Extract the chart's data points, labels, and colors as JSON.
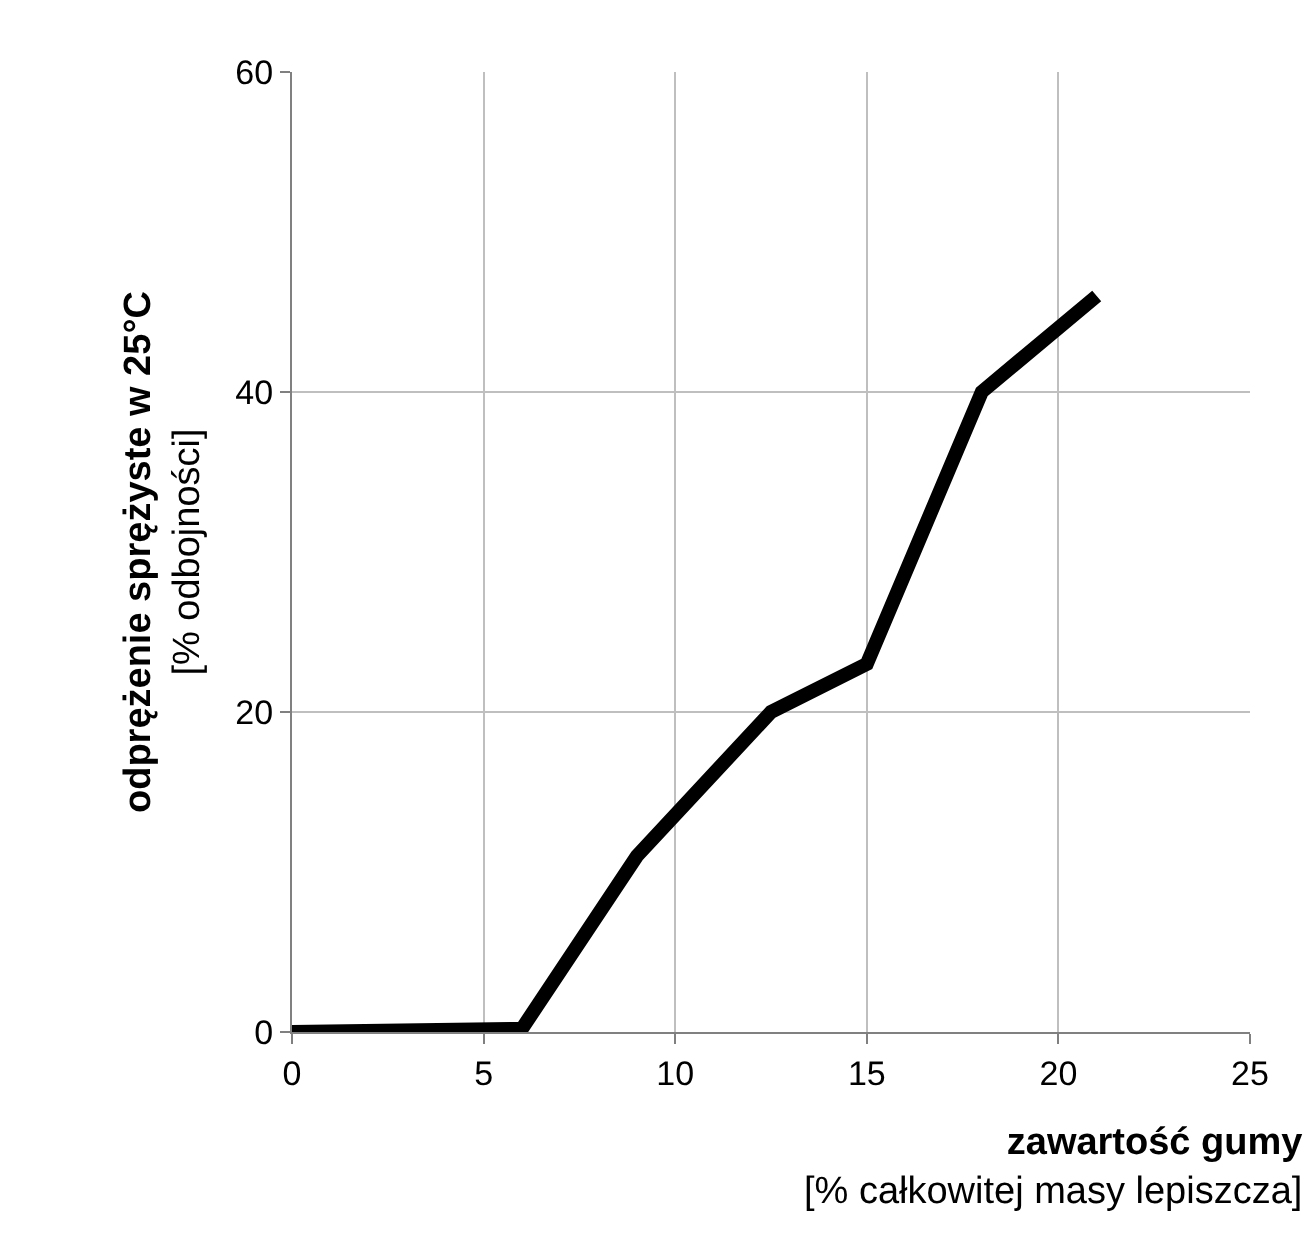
{
  "chart_data": {
    "type": "line",
    "xlabel": "zawartość gumy\n[% całkowitej masy lepiszcza]",
    "ylabel": "odprężenie sprężyste w 25°C\n[% odbojności]",
    "x": [
      0,
      6,
      9,
      12.5,
      15,
      18,
      21
    ],
    "series": [
      {
        "color": "#000000",
        "values": [
          0,
          0.2,
          11,
          20,
          23,
          40,
          46
        ]
      }
    ],
    "xlim": [
      0,
      25
    ],
    "xticks": [
      0,
      5,
      10,
      15,
      20,
      25
    ],
    "ylim": [
      0,
      60
    ],
    "yticks": [
      0,
      20,
      40,
      60
    ],
    "grid": true,
    "marker": "none",
    "line_style": "solid"
  }
}
